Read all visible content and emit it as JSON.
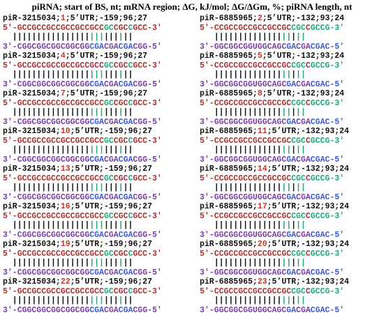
{
  "title": "piRNA; start of BS, nt; mRNA region; ΔG, kJ/mol; ΔG/ΔGm, %; piRNA length, nt",
  "columns": [
    {
      "name": "piR-3215034",
      "rest": ";5’UTR;-159;96;27",
      "mrna": {
        "a": "5'-GCCGCCGCCGCCGCCGCC",
        "b": "GC",
        "c": "CGC",
        "d": "C",
        "e": "GCC-3'"
      },
      "bars": {
        "a": "  ||||||||||||||||",
        "b": "|||",
        "c": "|||",
        "d": "|",
        "e": "||"
      },
      "pirna": {
        "a": "3'-CGGCGGCGGCGGCGG",
        "b": "CGA",
        "c": "CGA",
        "d": "CGA",
        "e": "CGG-5'"
      },
      "starts": [
        "1",
        "4",
        "7",
        "10",
        "13",
        "16",
        "19",
        "22"
      ]
    },
    {
      "name": "piR-6885965",
      "rest": ";5’UTR;-132;93;24",
      "mrna": {
        "a": "5'-CCGCCGCCGCCGCCGC",
        "b": "CGC",
        "c": "C",
        "d": "GCCG-3'"
      },
      "bars": {
        "a": "   ||||||||||||||",
        "b": "||",
        "c": "|",
        "d": "||"
      },
      "pirna": {
        "a": "3'-GGCGGCGGUGGCAGC",
        "b": "GA",
        "c": "CGA",
        "d": "CGAC-5'"
      },
      "starts": [
        "2",
        "5",
        "8",
        "11",
        "14",
        "17",
        "20",
        "23"
      ]
    }
  ]
}
